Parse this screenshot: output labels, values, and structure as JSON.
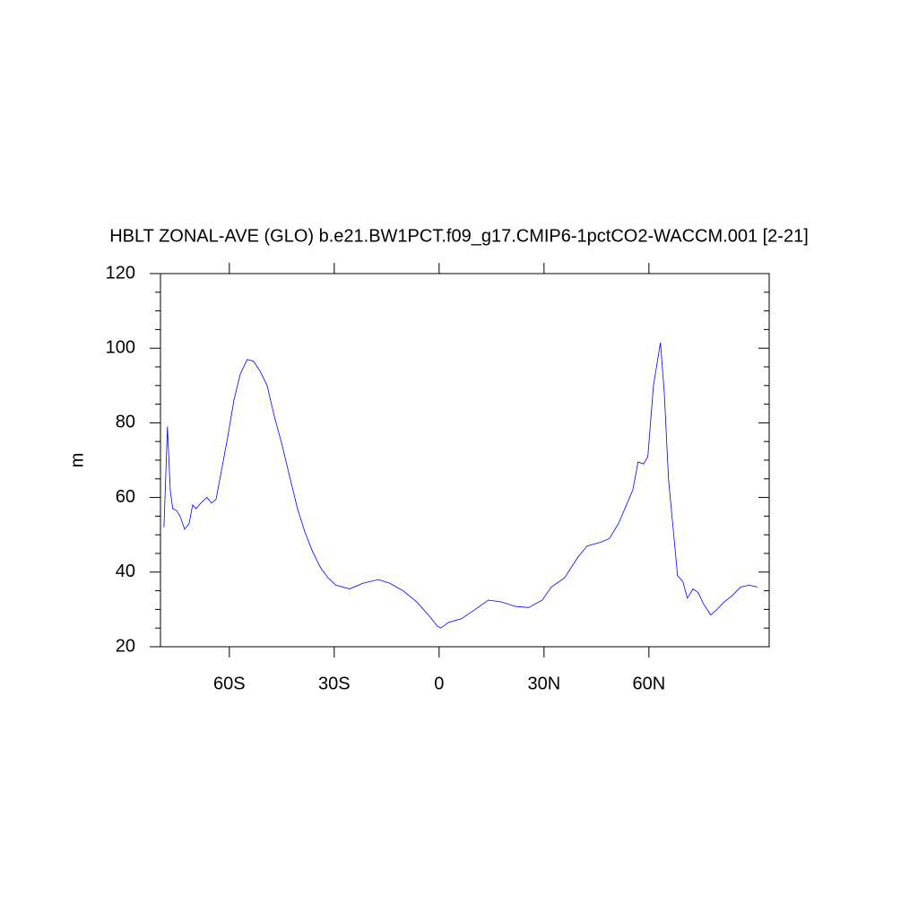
{
  "chart_data": {
    "type": "line",
    "title": "HBLT ZONAL-AVE (GLO) b.e21.BW1PCT.f09_g17.CMIP6-1pctCO2-WACCM.001 [2-21]",
    "y_label": "m",
    "x": [
      -78.7,
      -77.7,
      -76.9,
      -76.2,
      -75.1,
      -74.1,
      -72.8,
      -71.5,
      -70.5,
      -69.5,
      -68.2,
      -66.4,
      -65.1,
      -63.8,
      -62.3,
      -60.5,
      -58.7,
      -56.9,
      -54.9,
      -53.1,
      -51.3,
      -49.2,
      -47.2,
      -44.9,
      -42.6,
      -40.5,
      -38.5,
      -36.2,
      -33.8,
      -31.8,
      -29.5,
      -25.6,
      -21.8,
      -17.4,
      -14.1,
      -10.3,
      -6.4,
      -2.6,
      -0.5,
      0.5,
      2.6,
      6.4,
      10.3,
      14.1,
      17.9,
      21.8,
      25.6,
      29.5,
      32.1,
      35.9,
      39.7,
      42.3,
      46.2,
      48.7,
      51.3,
      53.8,
      55.4,
      56.9,
      58.5,
      59.7,
      61.3,
      63.3,
      64.4,
      65.6,
      66.9,
      68.2,
      69.7,
      71.0,
      72.6,
      74.1,
      75.6,
      77.7,
      79.5,
      81.5,
      83.6,
      86.2,
      88.7,
      91.0
    ],
    "series": [
      {
        "color": "#0000ff",
        "values": [
          52,
          79,
          62,
          57,
          56.5,
          55,
          51.5,
          53,
          58,
          57,
          58.5,
          60,
          58.5,
          59.5,
          67,
          76,
          86,
          93,
          97,
          96.5,
          94,
          90,
          82,
          74,
          65,
          57,
          51,
          45.5,
          41,
          38.5,
          36.5,
          35.5,
          37,
          38,
          37,
          35,
          32,
          28,
          25.5,
          25,
          26.5,
          27.5,
          30,
          32.5,
          32,
          30.8,
          30.5,
          32.5,
          36,
          38.5,
          44,
          47,
          48,
          49,
          53,
          58.5,
          62,
          69.5,
          69,
          71,
          90,
          101.5,
          88,
          65,
          52,
          39,
          37.5,
          33,
          35.5,
          34.5,
          31.5,
          28.5,
          30,
          32,
          33.5,
          36,
          36.5,
          36
        ]
      }
    ],
    "xlim": [
      -79.7,
      94.4
    ],
    "ylim": [
      20,
      120
    ],
    "xticks": [
      {
        "value": -60,
        "label": "60S"
      },
      {
        "value": -30,
        "label": "30S"
      },
      0,
      {
        "value": 30,
        "label": "30N"
      },
      {
        "value": 60,
        "label": "60N"
      }
    ],
    "yticks": [
      20,
      40,
      60,
      80,
      100,
      120
    ],
    "yminorticks": [
      25,
      30,
      35,
      45,
      50,
      55,
      65,
      70,
      75,
      85,
      90,
      95,
      105,
      110,
      115
    ]
  }
}
